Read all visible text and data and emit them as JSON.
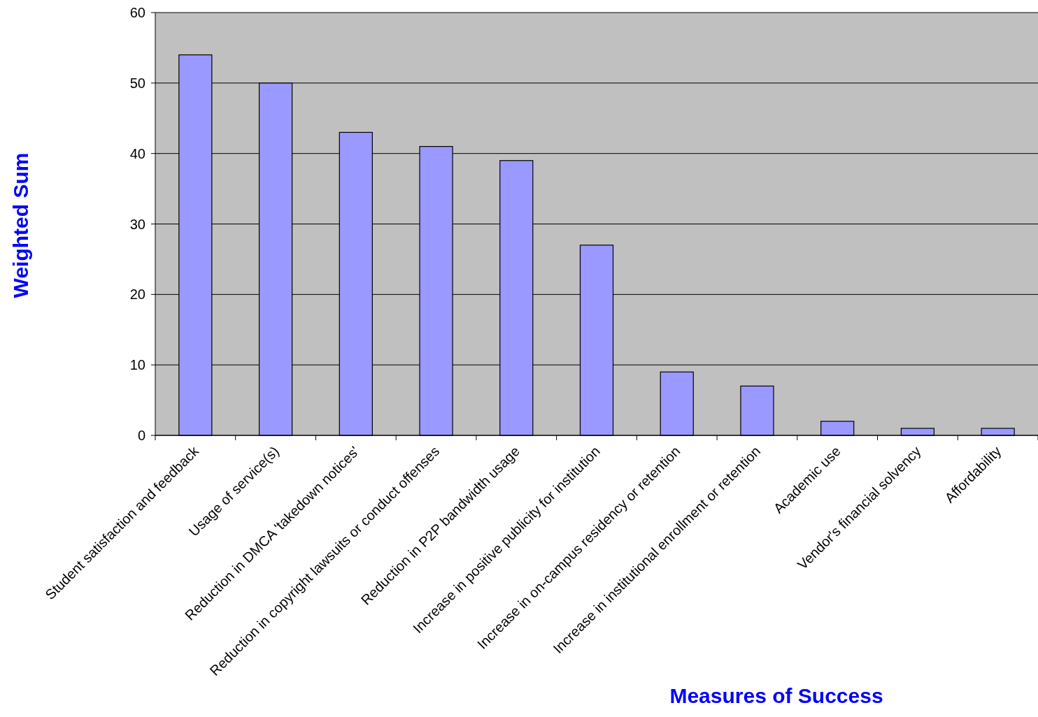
{
  "chart_data": {
    "type": "bar",
    "xlabel": "Measures of Success",
    "ylabel": "Weighted Sum",
    "categories": [
      "Student satisfaction and feedback",
      "Usage of service(s)",
      "Reduction in DMCA 'takedown notices'",
      "Reduction in copyright lawsuits or conduct offenses",
      "Reduction in P2P bandwidth usage",
      "Increase in positive publicity for institution",
      "Increase in on-campus residency or retention",
      "Increase in institutional enrollment or retention",
      "Academic use",
      "Vendor's financial solvency",
      "Affordability"
    ],
    "values": [
      54,
      50,
      43,
      41,
      39,
      27,
      9,
      7,
      2,
      1,
      1
    ],
    "color": "#9999ff",
    "ylim": [
      0,
      60
    ],
    "yticks": [
      0,
      10,
      20,
      30,
      40,
      50,
      60
    ],
    "grid": "y"
  }
}
